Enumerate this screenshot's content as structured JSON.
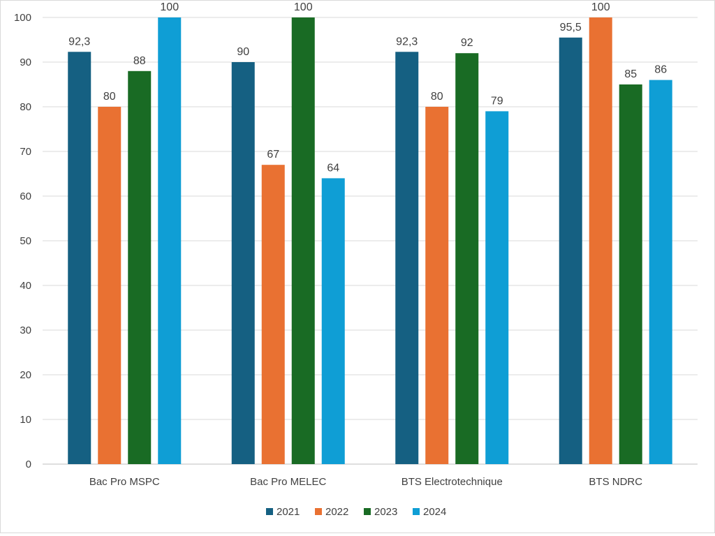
{
  "chart_data": {
    "type": "bar",
    "title": "",
    "xlabel": "",
    "ylabel": "",
    "ylim": [
      0,
      100
    ],
    "yticks": [
      0,
      10,
      20,
      30,
      40,
      50,
      60,
      70,
      80,
      90,
      100
    ],
    "grid": true,
    "legend_position": "bottom",
    "categories": [
      "Bac Pro MSPC",
      "Bac Pro MELEC",
      "BTS Electrotechnique",
      "BTS NDRC"
    ],
    "series": [
      {
        "name": "2021",
        "color": "#156082",
        "values": [
          92.3,
          90,
          92.3,
          95.5
        ],
        "labels": [
          "92,3",
          "90",
          "92,3",
          "95,5"
        ]
      },
      {
        "name": "2022",
        "color": "#e97132",
        "values": [
          80,
          67,
          80,
          100
        ],
        "labels": [
          "80",
          "67",
          "80",
          "100"
        ]
      },
      {
        "name": "2023",
        "color": "#196b24",
        "values": [
          88,
          100,
          92,
          85
        ],
        "labels": [
          "88",
          "100",
          "92",
          "85"
        ]
      },
      {
        "name": "2024",
        "color": "#0f9ed5",
        "values": [
          100,
          64,
          79,
          86
        ],
        "labels": [
          "100",
          "64",
          "79",
          "86"
        ]
      }
    ]
  }
}
